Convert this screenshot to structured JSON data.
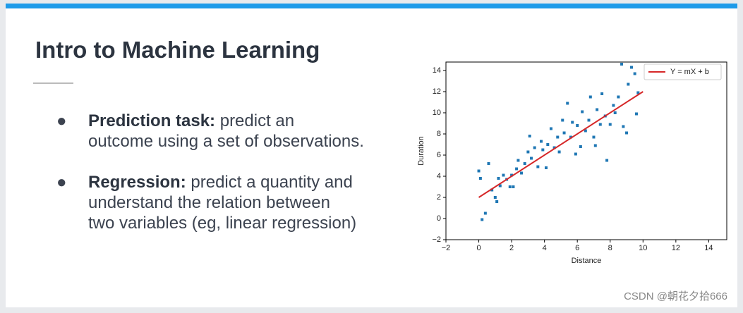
{
  "slide": {
    "title": "Intro to Machine Learning",
    "bullets": [
      {
        "label": "Prediction task:",
        "lines": [
          "predict an",
          "outcome using a set of observations."
        ]
      },
      {
        "label": "Regression:",
        "lines": [
          "predict a quantity and",
          "understand the relation between",
          "two variables (eg, linear regression)"
        ]
      }
    ]
  },
  "watermark": "CSDN @朝花夕拾666",
  "chart_data": {
    "type": "scatter",
    "xlabel": "Distance",
    "ylabel": "Duration",
    "color": "#1f77b4",
    "x": [
      0,
      0.1,
      0.2,
      0.4,
      0.6,
      0.8,
      1,
      1.1,
      1.2,
      1.3,
      1.5,
      1.7,
      1.9,
      2,
      2.1,
      2.3,
      2.4,
      2.6,
      2.8,
      3,
      3.1,
      3.2,
      3.4,
      3.6,
      3.8,
      3.9,
      4.1,
      4.2,
      4.4,
      4.6,
      4.8,
      4.9,
      5.1,
      5.2,
      5.4,
      5.6,
      5.7,
      5.9,
      6,
      6.2,
      6.3,
      6.5,
      6.7,
      6.8,
      7,
      7.1,
      7.2,
      7.4,
      7.5,
      7.7,
      7.8,
      8,
      8.2,
      8.3,
      8.5,
      8.7,
      8.8,
      9,
      9.1,
      9.3,
      9.5,
      9.6,
      9.7
    ],
    "y": [
      4.5,
      3.8,
      -0.1,
      0.5,
      5.2,
      2.7,
      2,
      1.6,
      3.8,
      3.1,
      4.1,
      3.7,
      3,
      4.1,
      3,
      4.7,
      5.5,
      4.3,
      5.2,
      6.3,
      7.8,
      5.7,
      6.7,
      4.9,
      7.3,
      6.5,
      4.8,
      7,
      8.5,
      6.7,
      7.7,
      6.3,
      9.3,
      8.1,
      10.9,
      7.7,
      9.1,
      6.1,
      8.8,
      6.8,
      10.1,
      8.3,
      9.3,
      11.5,
      7.7,
      6.9,
      10.3,
      8.9,
      11.8,
      9.7,
      5.5,
      8.9,
      10.7,
      10,
      11.5,
      14.6,
      8.7,
      8.1,
      12.7,
      14.3,
      13.7,
      9.9,
      11.9
    ],
    "fit": {
      "name": "Y = mX + b",
      "color": "#d62728",
      "x": [
        0,
        10
      ],
      "y": [
        2,
        12
      ]
    },
    "xlim": [
      -2,
      15.1
    ],
    "ylim": [
      -2,
      14.8
    ],
    "xticks": [
      {
        "value": -2,
        "label": "−2"
      },
      0,
      2,
      4,
      6,
      8,
      10,
      12,
      14
    ],
    "yticks": [
      {
        "value": -2,
        "label": "−2"
      },
      0,
      2,
      4,
      6,
      8,
      10,
      12,
      14
    ],
    "legend": "upper right"
  }
}
